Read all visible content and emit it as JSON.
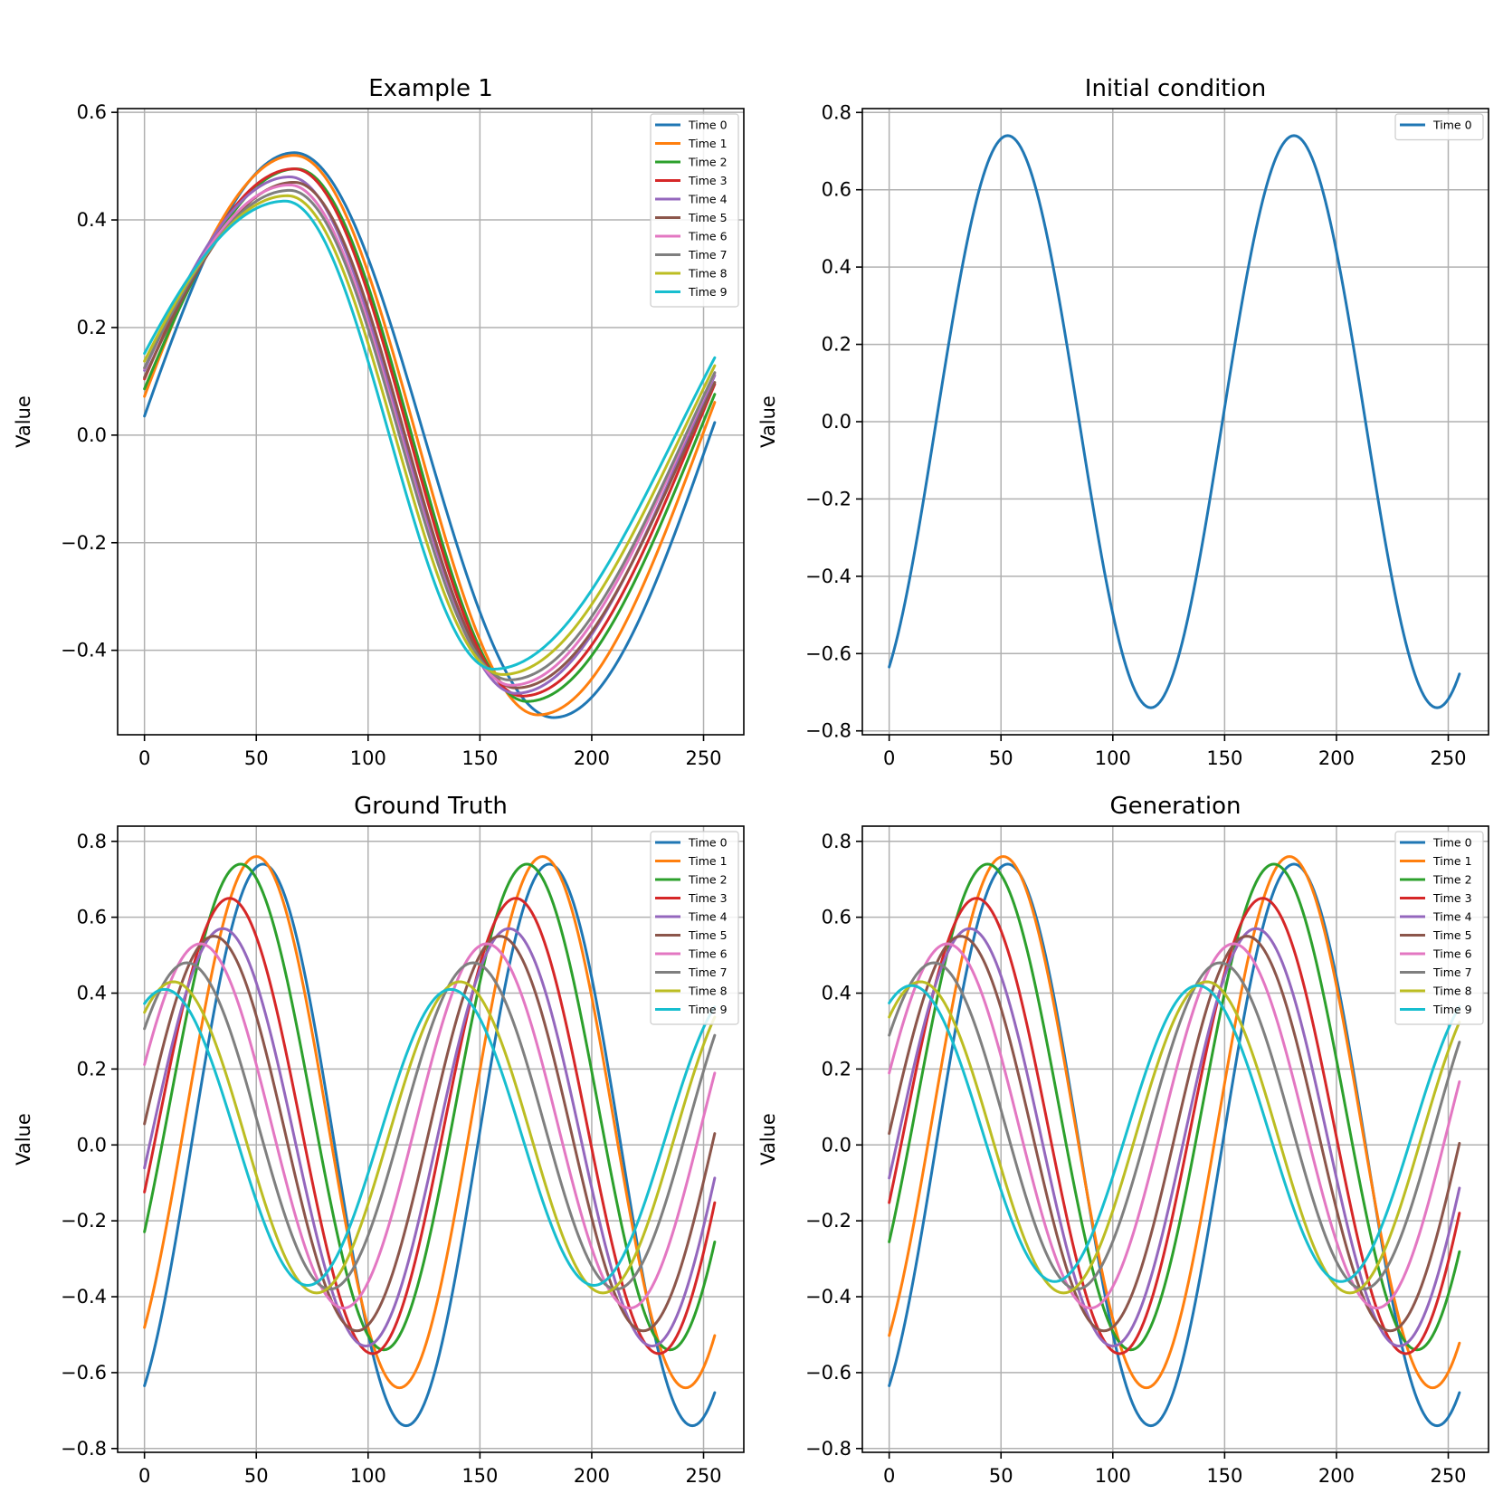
{
  "colors": [
    "#1f77b4",
    "#ff7f0e",
    "#2ca02c",
    "#d62728",
    "#9467bd",
    "#8c564b",
    "#e377c2",
    "#7f7f7f",
    "#bcbd22",
    "#17becf"
  ],
  "chart_data": [
    {
      "type": "line",
      "title": "Example 1",
      "xlabel": "",
      "ylabel": "Value",
      "xlim": [
        -12,
        268
      ],
      "ylim": [
        -0.557,
        0.607
      ],
      "xticks": [
        0,
        50,
        100,
        150,
        200,
        250
      ],
      "xtick_labels": [
        "0",
        "50",
        "100",
        "150",
        "200",
        "250"
      ],
      "yticks": [
        -0.4,
        -0.2,
        0.0,
        0.2,
        0.4,
        0.6
      ],
      "ytick_labels": [
        "−0.4",
        "−0.2",
        "0.0",
        "0.2",
        "0.4",
        "0.6"
      ],
      "grid": true,
      "legend": "top-right",
      "model": "rolling",
      "x_range": [
        0,
        255
      ],
      "series": [
        {
          "name": "Time 0",
          "amp": 0.525,
          "x_peak": 67,
          "x_trough": 183,
          "offset": 0.0
        },
        {
          "name": "Time 1",
          "amp": 0.52,
          "x_peak": 67,
          "x_trough": 176,
          "offset": 0.0
        },
        {
          "name": "Time 2",
          "amp": 0.495,
          "x_peak": 68,
          "x_trough": 171,
          "offset": 0.0
        },
        {
          "name": "Time 3",
          "amp": 0.49,
          "x_peak": 67,
          "x_trough": 169,
          "offset": 0.005
        },
        {
          "name": "Time 4",
          "amp": 0.48,
          "x_peak": 65,
          "x_trough": 166,
          "offset": 0.0
        },
        {
          "name": "Time 5",
          "amp": 0.47,
          "x_peak": 67,
          "x_trough": 166,
          "offset": 0.0
        },
        {
          "name": "Time 6",
          "amp": 0.465,
          "x_peak": 65,
          "x_trough": 164,
          "offset": 0.0
        },
        {
          "name": "Time 7",
          "amp": 0.455,
          "x_peak": 65,
          "x_trough": 163,
          "offset": 0.0
        },
        {
          "name": "Time 8",
          "amp": 0.445,
          "x_peak": 64,
          "x_trough": 160,
          "offset": 0.0
        },
        {
          "name": "Time 9",
          "amp": 0.435,
          "x_peak": 63,
          "x_trough": 156,
          "offset": 0.0
        }
      ]
    },
    {
      "type": "line",
      "title": "Initial condition",
      "xlabel": "",
      "ylabel": "Value",
      "xlim": [
        -12,
        268
      ],
      "ylim": [
        -0.81,
        0.81
      ],
      "xticks": [
        0,
        50,
        100,
        150,
        200,
        250
      ],
      "xtick_labels": [
        "0",
        "50",
        "100",
        "150",
        "200",
        "250"
      ],
      "yticks": [
        -0.8,
        -0.6,
        -0.4,
        -0.2,
        0.0,
        0.2,
        0.4,
        0.6,
        0.8
      ],
      "ytick_labels": [
        "−0.8",
        "−0.6",
        "−0.4",
        "−0.2",
        "0.0",
        "0.2",
        "0.4",
        "0.6",
        "0.8"
      ],
      "grid": true,
      "legend": "top-right",
      "model": "sine",
      "x_range": [
        0,
        255
      ],
      "series": [
        {
          "name": "Time 0",
          "amp": 0.74,
          "x_peak": 53,
          "period": 128
        }
      ]
    },
    {
      "type": "line",
      "title": "Ground Truth",
      "xlabel": "",
      "ylabel": "Value",
      "xlim": [
        -12,
        268
      ],
      "ylim": [
        -0.81,
        0.84
      ],
      "xticks": [
        0,
        50,
        100,
        150,
        200,
        250
      ],
      "xtick_labels": [
        "0",
        "50",
        "100",
        "150",
        "200",
        "250"
      ],
      "yticks": [
        -0.8,
        -0.6,
        -0.4,
        -0.2,
        0.0,
        0.2,
        0.4,
        0.6,
        0.8
      ],
      "ytick_labels": [
        "−0.8",
        "−0.6",
        "−0.4",
        "−0.2",
        "0.0",
        "0.2",
        "0.4",
        "0.6",
        "0.8"
      ],
      "grid": true,
      "legend": "top-right",
      "model": "sine",
      "x_range": [
        0,
        255
      ],
      "series": [
        {
          "name": "Time 0",
          "amp": 0.74,
          "x_peak": 53,
          "period": 128
        },
        {
          "name": "Time 1",
          "amp": 0.7,
          "x_peak": 50,
          "period": 128,
          "offset": 0.06
        },
        {
          "name": "Time 2",
          "amp": 0.64,
          "x_peak": 43,
          "period": 128,
          "offset": 0.1
        },
        {
          "name": "Time 3",
          "amp": 0.6,
          "x_peak": 38,
          "period": 128,
          "offset": 0.05
        },
        {
          "name": "Time 4",
          "amp": 0.55,
          "x_peak": 35,
          "period": 128,
          "offset": 0.02
        },
        {
          "name": "Time 5",
          "amp": 0.52,
          "x_peak": 31,
          "period": 128,
          "offset": 0.03
        },
        {
          "name": "Time 6",
          "amp": 0.48,
          "x_peak": 25,
          "period": 128,
          "offset": 0.05
        },
        {
          "name": "Time 7",
          "amp": 0.43,
          "x_peak": 19,
          "period": 128,
          "offset": 0.05
        },
        {
          "name": "Time 8",
          "amp": 0.41,
          "x_peak": 13,
          "period": 128,
          "offset": 0.02
        },
        {
          "name": "Time 9",
          "amp": 0.39,
          "x_peak": 9,
          "period": 128,
          "offset": 0.02
        }
      ]
    },
    {
      "type": "line",
      "title": "Generation",
      "xlabel": "",
      "ylabel": "Value",
      "xlim": [
        -12,
        268
      ],
      "ylim": [
        -0.81,
        0.84
      ],
      "xticks": [
        0,
        50,
        100,
        150,
        200,
        250
      ],
      "xtick_labels": [
        "0",
        "50",
        "100",
        "150",
        "200",
        "250"
      ],
      "yticks": [
        -0.8,
        -0.6,
        -0.4,
        -0.2,
        0.0,
        0.2,
        0.4,
        0.6,
        0.8
      ],
      "ytick_labels": [
        "−0.8",
        "−0.6",
        "−0.4",
        "−0.2",
        "0.0",
        "0.2",
        "0.4",
        "0.6",
        "0.8"
      ],
      "grid": true,
      "legend": "top-right",
      "model": "sine",
      "x_range": [
        0,
        255
      ],
      "series": [
        {
          "name": "Time 0",
          "amp": 0.74,
          "x_peak": 53,
          "period": 128
        },
        {
          "name": "Time 1",
          "amp": 0.7,
          "x_peak": 51,
          "period": 128,
          "offset": 0.06
        },
        {
          "name": "Time 2",
          "amp": 0.64,
          "x_peak": 44,
          "period": 128,
          "offset": 0.1
        },
        {
          "name": "Time 3",
          "amp": 0.6,
          "x_peak": 39,
          "period": 128,
          "offset": 0.05
        },
        {
          "name": "Time 4",
          "amp": 0.55,
          "x_peak": 36,
          "period": 128,
          "offset": 0.02
        },
        {
          "name": "Time 5",
          "amp": 0.52,
          "x_peak": 32,
          "period": 128,
          "offset": 0.03
        },
        {
          "name": "Time 6",
          "amp": 0.48,
          "x_peak": 26,
          "period": 128,
          "offset": 0.05
        },
        {
          "name": "Time 7",
          "amp": 0.43,
          "x_peak": 20,
          "period": 128,
          "offset": 0.05
        },
        {
          "name": "Time 8",
          "amp": 0.41,
          "x_peak": 14,
          "period": 128,
          "offset": 0.02
        },
        {
          "name": "Time 9",
          "amp": 0.39,
          "x_peak": 10,
          "period": 128,
          "offset": 0.03
        }
      ]
    }
  ]
}
